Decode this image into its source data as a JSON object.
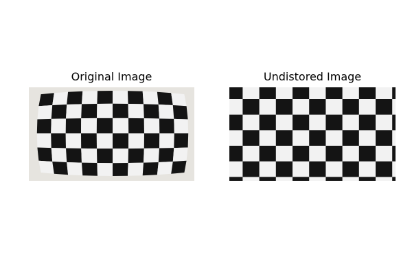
{
  "figure": {
    "panels": [
      {
        "title": "Original Image",
        "image": "distorted-checkerboard-photo"
      },
      {
        "title": "Undistored Image",
        "image": "undistorted-checkerboard-photo"
      }
    ],
    "colors": {
      "dark_square": "#141414",
      "light_square": "#f2f2f2",
      "background": "#ffffff"
    }
  }
}
